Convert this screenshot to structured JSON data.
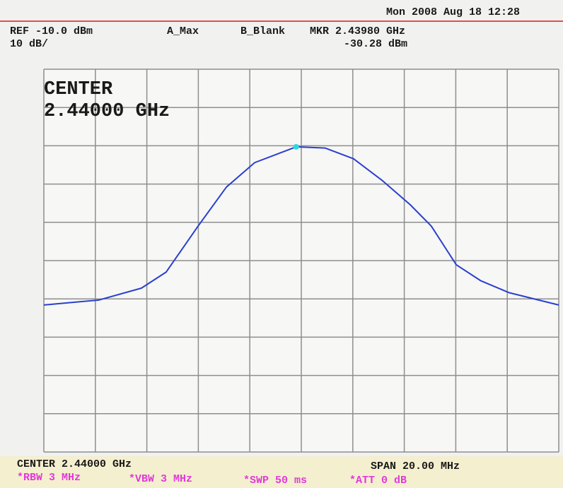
{
  "chart_data": {
    "type": "line",
    "datetime": "Mon 2008 Aug 18 12:28",
    "ref": "REF -10.0 dBm",
    "scale": "10 dB/",
    "trace_a": "A_Max",
    "trace_b": "B_Blank",
    "marker_freq": "MKR 2.43980 GHz",
    "marker_level": "-30.28 dBm",
    "center_title": "CENTER",
    "center_value": "2.44000 GHz",
    "center": "CENTER 2.44000 GHz",
    "span": "SPAN 20.00 MHz",
    "rbw": "*RBW 3 MHz",
    "vbw": "*VBW 3 MHz",
    "swp": "*SWP 50 ms",
    "att": "*ATT 0 dB",
    "x": [
      2.43,
      2.43214,
      2.43379,
      2.43475,
      2.43599,
      2.43709,
      2.43819,
      2.4398,
      2.44093,
      2.44203,
      2.44313,
      2.44423,
      2.44505,
      2.44602,
      2.44698,
      2.44808,
      2.45
    ],
    "series": [
      {
        "color": "#2a3fd0",
        "values": [
          -71.6,
          -70.3,
          -67.2,
          -63,
          -51,
          -40.8,
          -34.4,
          -30.28,
          -30.6,
          -33.4,
          -39,
          -45.4,
          -51,
          -61.1,
          -65.3,
          -68.4,
          -71.6
        ]
      }
    ],
    "marker_color": "#2fd8e0",
    "xlim": [
      2.43,
      2.45
    ],
    "xticks": [
      2.43,
      2.432,
      2.434,
      2.436,
      2.438,
      2.44,
      2.442,
      2.444,
      2.446,
      2.448,
      2.45
    ],
    "ylim": [
      -110,
      -10
    ],
    "yticks": [
      -110,
      -100,
      -90,
      -80,
      -70,
      -60,
      -50,
      -40,
      -30,
      -20,
      -10
    ],
    "grid": true
  }
}
